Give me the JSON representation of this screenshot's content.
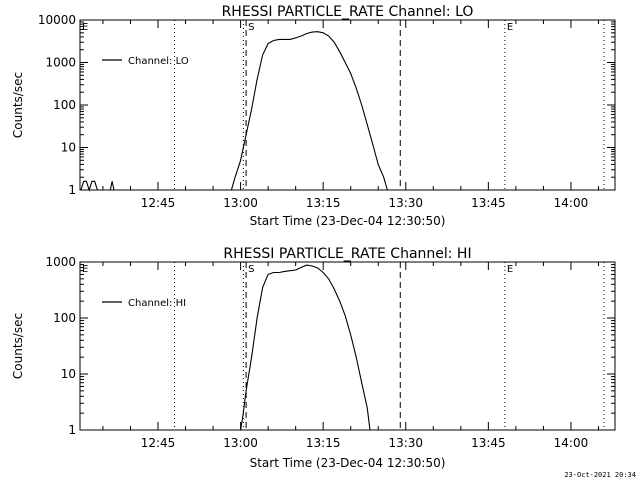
{
  "chart_data": [
    {
      "type": "line",
      "title": "RHESSI PARTICLE_RATE Channel: LO",
      "xlabel": "Start Time (23-Dec-04 12:30:50)",
      "ylabel": "Counts/sec",
      "yscale": "log",
      "xlim": [
        "12:30:50",
        "14:08:00"
      ],
      "ylim": [
        1,
        10000
      ],
      "x_tick_labels": [
        "12:45",
        "13:00",
        "13:15",
        "13:30",
        "13:45",
        "14:00"
      ],
      "y_tick_labels": [
        "1",
        "10",
        "100",
        "1000",
        "10000"
      ],
      "legend": {
        "entries": [
          "Channel: LO"
        ],
        "placement": "top-left"
      },
      "markers": [
        {
          "label": "E",
          "time": "12:30:50",
          "style": "dotted"
        },
        {
          "label": "S",
          "time": "13:01:00",
          "style": "dashed"
        },
        {
          "label": "",
          "time": "13:29:00",
          "style": "dashed"
        },
        {
          "label": "",
          "time": "12:48:00",
          "style": "dotted"
        },
        {
          "label": "",
          "time": "13:00:30",
          "style": "dotted"
        },
        {
          "label": "E",
          "time": "13:48:00",
          "style": "dotted"
        },
        {
          "label": "",
          "time": "14:06:00",
          "style": "dotted"
        }
      ],
      "series": [
        {
          "name": "Channel: LO",
          "points": [
            [
              "12:31:00",
              1
            ],
            [
              "12:31:30",
              1.6
            ],
            [
              "12:32:00",
              1.6
            ],
            [
              "12:32:30",
              1
            ],
            [
              "12:33:00",
              1.6
            ],
            [
              "12:33:30",
              1.6
            ],
            [
              "12:34:00",
              1
            ],
            [
              "12:36:20",
              1
            ],
            [
              "12:36:40",
              1.6
            ],
            [
              "12:37:00",
              1
            ],
            [
              "12:58:20",
              1
            ],
            [
              "12:59:00",
              2
            ],
            [
              "13:00:00",
              5
            ],
            [
              "13:01:00",
              20
            ],
            [
              "13:02:00",
              80
            ],
            [
              "13:03:00",
              400
            ],
            [
              "13:04:00",
              1500
            ],
            [
              "13:05:00",
              2800
            ],
            [
              "13:06:00",
              3300
            ],
            [
              "13:07:00",
              3500
            ],
            [
              "13:08:00",
              3500
            ],
            [
              "13:09:00",
              3500
            ],
            [
              "13:10:00",
              3800
            ],
            [
              "13:11:00",
              4200
            ],
            [
              "13:12:00",
              4800
            ],
            [
              "13:13:00",
              5200
            ],
            [
              "13:14:00",
              5300
            ],
            [
              "13:15:00",
              5000
            ],
            [
              "13:16:00",
              4200
            ],
            [
              "13:17:00",
              3000
            ],
            [
              "13:18:00",
              1800
            ],
            [
              "13:19:00",
              1000
            ],
            [
              "13:20:00",
              550
            ],
            [
              "13:21:00",
              250
            ],
            [
              "13:22:00",
              100
            ],
            [
              "13:23:00",
              35
            ],
            [
              "13:24:00",
              12
            ],
            [
              "13:25:00",
              4
            ],
            [
              "13:26:00",
              2
            ],
            [
              "13:26:40",
              1
            ]
          ]
        }
      ]
    },
    {
      "type": "line",
      "title": "RHESSI PARTICLE_RATE Channel: HI",
      "xlabel": "Start Time (23-Dec-04 12:30:50)",
      "ylabel": "Counts/sec",
      "yscale": "log",
      "xlim": [
        "12:30:50",
        "14:08:00"
      ],
      "ylim": [
        1,
        1000
      ],
      "x_tick_labels": [
        "12:45",
        "13:00",
        "13:15",
        "13:30",
        "13:45",
        "14:00"
      ],
      "y_tick_labels": [
        "1",
        "10",
        "100",
        "1000"
      ],
      "legend": {
        "entries": [
          "Channel: HI"
        ],
        "placement": "top-left"
      },
      "markers": [
        {
          "label": "E",
          "time": "12:30:50",
          "style": "dotted"
        },
        {
          "label": "S",
          "time": "13:01:00",
          "style": "dashed"
        },
        {
          "label": "",
          "time": "13:29:00",
          "style": "dashed"
        },
        {
          "label": "",
          "time": "12:48:00",
          "style": "dotted"
        },
        {
          "label": "",
          "time": "13:00:30",
          "style": "dotted"
        },
        {
          "label": "E",
          "time": "13:48:00",
          "style": "dotted"
        },
        {
          "label": "",
          "time": "14:06:00",
          "style": "dotted"
        }
      ],
      "series": [
        {
          "name": "Channel: HI",
          "points": [
            [
              "13:00:00",
              1
            ],
            [
              "13:00:30",
              2
            ],
            [
              "13:01:00",
              5
            ],
            [
              "13:02:00",
              20
            ],
            [
              "13:03:00",
              100
            ],
            [
              "13:04:00",
              350
            ],
            [
              "13:05:00",
              600
            ],
            [
              "13:06:00",
              650
            ],
            [
              "13:07:00",
              650
            ],
            [
              "13:08:00",
              680
            ],
            [
              "13:09:00",
              700
            ],
            [
              "13:10:00",
              720
            ],
            [
              "13:11:00",
              800
            ],
            [
              "13:12:00",
              880
            ],
            [
              "13:13:00",
              850
            ],
            [
              "13:14:00",
              780
            ],
            [
              "13:15:00",
              650
            ],
            [
              "13:16:00",
              500
            ],
            [
              "13:17:00",
              330
            ],
            [
              "13:18:00",
              200
            ],
            [
              "13:19:00",
              110
            ],
            [
              "13:20:00",
              50
            ],
            [
              "13:21:00",
              20
            ],
            [
              "13:22:00",
              7
            ],
            [
              "13:23:00",
              2.5
            ],
            [
              "13:23:30",
              1
            ]
          ]
        }
      ]
    }
  ],
  "footer": {
    "timestamp": "23-Oct-2021 20:34"
  }
}
